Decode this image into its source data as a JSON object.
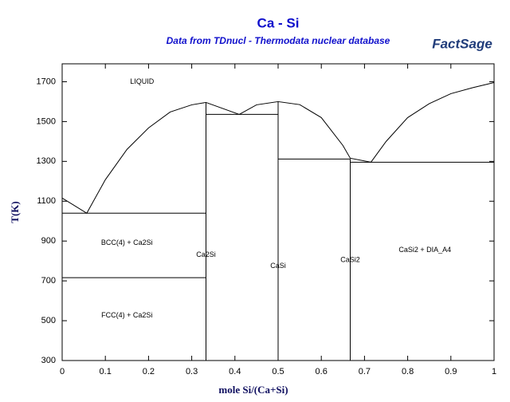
{
  "chart_data": {
    "type": "line",
    "title": "Ca - Si",
    "subtitle": "Data from TDnucl - Thermodata nuclear database",
    "logo": "FactSage",
    "xlabel": "mole Si/(Ca+Si)",
    "ylabel": "T(K)",
    "xlim": [
      0,
      1
    ],
    "ylim": [
      300,
      1790
    ],
    "xticks": [
      0,
      0.1,
      0.2,
      0.3,
      0.4,
      0.5,
      0.6,
      0.7,
      0.8,
      0.9,
      1
    ],
    "yticks": [
      300,
      500,
      700,
      900,
      1100,
      1300,
      1500,
      1700
    ],
    "series": [
      {
        "color": "#000000",
        "x": [
          0,
          0.057,
          0.1,
          0.15,
          0.2,
          0.25,
          0.3,
          0.333
        ],
        "values": [
          1116,
          1040,
          1208,
          1360,
          1468,
          1548,
          1584,
          1596
        ]
      },
      {
        "color": "#000000",
        "x": [
          0.333,
          0.41,
          0.45,
          0.5
        ],
        "values": [
          1596,
          1536,
          1584,
          1600
        ]
      },
      {
        "color": "#000000",
        "x": [
          0.5,
          0.55,
          0.6,
          0.65,
          0.667,
          0.715
        ],
        "values": [
          1600,
          1585,
          1520,
          1380,
          1316,
          1296
        ]
      },
      {
        "color": "#000000",
        "x": [
          0.715,
          0.75,
          0.8,
          0.85,
          0.9,
          0.95,
          1
        ],
        "values": [
          1296,
          1400,
          1520,
          1590,
          1640,
          1670,
          1696
        ]
      },
      {
        "color": "#000000",
        "x": [
          0,
          0.333
        ],
        "values": [
          1040,
          1040
        ]
      },
      {
        "color": "#000000",
        "x": [
          0,
          0.333
        ],
        "values": [
          716,
          716
        ]
      },
      {
        "color": "#000000",
        "x": [
          0.333,
          0.5
        ],
        "values": [
          1536,
          1536
        ]
      },
      {
        "color": "#000000",
        "x": [
          0.5,
          0.667
        ],
        "values": [
          1312,
          1312
        ]
      },
      {
        "color": "#000000",
        "x": [
          0.667,
          1
        ],
        "values": [
          1296,
          1296
        ]
      },
      {
        "color": "#000000",
        "x": [
          0.333,
          0.333
        ],
        "values": [
          300,
          1596
        ]
      },
      {
        "color": "#000000",
        "x": [
          0.5,
          0.5
        ],
        "values": [
          300,
          1600
        ]
      },
      {
        "color": "#000000",
        "x": [
          0.667,
          0.667
        ],
        "values": [
          300,
          1312
        ]
      }
    ],
    "annotations": [
      {
        "text": "LIQUID",
        "x": 0.185,
        "y": 1700
      },
      {
        "text": "BCC(4) + Ca2Si",
        "x": 0.15,
        "y": 890
      },
      {
        "text": "Ca2Si",
        "x": 0.333,
        "y": 830
      },
      {
        "text": "CaSi",
        "x": 0.5,
        "y": 775
      },
      {
        "text": "CaSi2",
        "x": 0.667,
        "y": 805
      },
      {
        "text": "CaSi2 + DIA_A4",
        "x": 0.84,
        "y": 855
      },
      {
        "text": "FCC(4) + Ca2Si",
        "x": 0.15,
        "y": 525
      }
    ]
  }
}
